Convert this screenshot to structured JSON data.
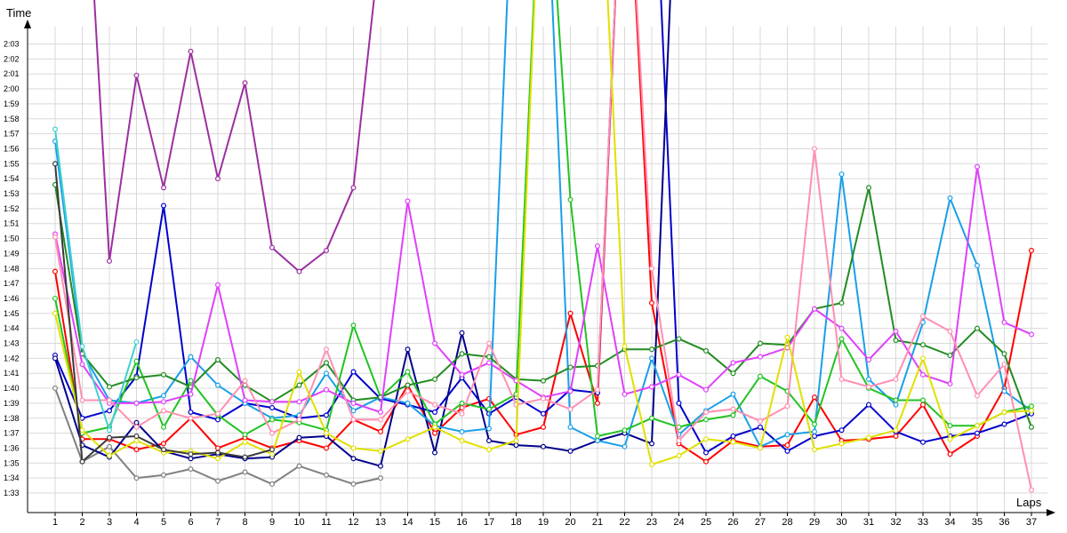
{
  "chart_data": {
    "type": "line",
    "xlabel": "Laps",
    "ylabel": "Time",
    "grid": true,
    "legend": "none",
    "x_ticks": [
      "1",
      "2",
      "3",
      "4",
      "5",
      "6",
      "7",
      "8",
      "9",
      "10",
      "11",
      "12",
      "13",
      "14",
      "15",
      "16",
      "17",
      "18",
      "19",
      "20",
      "21",
      "22",
      "23",
      "24",
      "25",
      "26",
      "27",
      "28",
      "29",
      "30",
      "31",
      "32",
      "33",
      "34",
      "35",
      "36",
      "37"
    ],
    "y_ticks": [
      "1:33",
      "1:34",
      "1:35",
      "1:36",
      "1:37",
      "1:38",
      "1:39",
      "1:40",
      "1:41",
      "1:42",
      "1:43",
      "1:44",
      "1:45",
      "1:46",
      "1:47",
      "1:48",
      "1:49",
      "1:50",
      "1:51",
      "1:52",
      "1:53",
      "1:54",
      "1:55",
      "1:56",
      "1:57",
      "1:58",
      "1:59",
      "2:00",
      "2:01",
      "2:02",
      "2:03"
    ],
    "ylim_seconds": [
      92,
      125
    ],
    "series": [
      {
        "color": "#9b30a0",
        "values": [
          null,
          140,
          108.5,
          120.9,
          113.4,
          122.5,
          114,
          120.4,
          109.4,
          107.8,
          109.2,
          113.4,
          130
        ]
      },
      {
        "color": "#808080",
        "values": [
          100,
          95.1,
          96.1,
          94,
          94.2,
          94.6,
          93.8,
          94.4,
          93.6,
          94.8,
          94.2,
          93.6,
          94
        ]
      },
      {
        "color": "#ff0000",
        "values": [
          107.8,
          96.6,
          96.6,
          95.9,
          96.3,
          98,
          96,
          96.7,
          96,
          96.5,
          96,
          97.9,
          97.1,
          100.2,
          97,
          98.7,
          99.3,
          96.9,
          97.4,
          105,
          99,
          140,
          105.7,
          96.3,
          95.1,
          96.5,
          96.1,
          96.2,
          99.4,
          96.5,
          96.6,
          96.8,
          98.9,
          95.6,
          96.8,
          100,
          109.2
        ]
      },
      {
        "color": "#0000cc",
        "values": [
          102.2,
          98,
          98.5,
          100.8,
          112.2,
          98.4,
          97.9,
          99,
          98.7,
          98,
          98.2,
          101.1,
          99.3,
          98.9,
          98.4,
          100.7,
          98.3,
          99.4,
          98.3,
          99.9,
          99.7,
          140,
          140,
          99,
          95.7,
          96.8,
          97.4,
          95.8,
          96.8,
          97.2,
          98.9,
          97.1,
          96.4,
          96.8,
          97,
          97.6,
          98.3
        ]
      },
      {
        "color": "#00008b",
        "values": [
          102,
          96.2,
          95.4,
          97.7,
          95.8,
          95.3,
          95.6,
          95.3,
          95.4,
          96.7,
          96.8,
          95.3,
          94.8,
          102.6,
          95.7,
          103.7,
          96.5,
          96.2,
          96.1,
          95.8,
          96.5,
          97,
          96.3,
          140
        ]
      },
      {
        "color": "#1a9fe8",
        "values": [
          116.5,
          102.4,
          99.2,
          99,
          99.5,
          102.1,
          100.2,
          99,
          98,
          98.2,
          101,
          98.5,
          99.4,
          99,
          97.5,
          97.1,
          97.3,
          140,
          140,
          97.4,
          96.5,
          96.1,
          102,
          96.9,
          98.5,
          99.6,
          96.1,
          96.9,
          97.1,
          114.3,
          100.6,
          98.9,
          104.4,
          112.7,
          108.2,
          99.8,
          98.5
        ]
      },
      {
        "color": "#22c322",
        "values": [
          106,
          97,
          97.4,
          101.8,
          97.4,
          100.5,
          98.2,
          96.9,
          97.9,
          97.7,
          97.2,
          104.2,
          99.4,
          101.1,
          97.6,
          99,
          98.6,
          99.6,
          140,
          112.6,
          96.8,
          97.2,
          98,
          97.4,
          97.9,
          98.2,
          100.8,
          99.8,
          97.6,
          103.3,
          100,
          99.2,
          99.2,
          97.5,
          97.5,
          98.4,
          98.8
        ]
      },
      {
        "color": "#228b22",
        "values": [
          113.6,
          102.3,
          100.1,
          100.7,
          100.9,
          100.1,
          101.9,
          100.2,
          99.1,
          100.2,
          101.7,
          99.2,
          99.4,
          100.2,
          100.6,
          102.3,
          102.1,
          100.6,
          100.5,
          101.4,
          101.5,
          102.6,
          102.6,
          103.3,
          102.5,
          101,
          103,
          102.9,
          105.3,
          105.7,
          113.4,
          103.2,
          102.9,
          102.2,
          104,
          102.3,
          97.4
        ]
      },
      {
        "color": "#e040fb",
        "values": [
          110.3,
          101.6,
          99,
          99,
          99.1,
          99.6,
          106.9,
          99.2,
          99.1,
          99.1,
          99.9,
          99,
          98.4,
          112.5,
          103,
          100.9,
          101.7,
          100.5,
          99.4,
          99.8,
          109.5,
          99.6,
          100.1,
          100.9,
          99.9,
          101.7,
          102.1,
          102.7,
          105.3,
          104,
          101.9,
          103.8,
          100.9,
          100.3,
          114.8,
          104.4,
          103.6
        ]
      },
      {
        "color": "#ff8fb1",
        "values": [
          110.1,
          99.2,
          99.2,
          97.4,
          98.5,
          98,
          98.3,
          100.5,
          97,
          97.9,
          102.6,
          97.9,
          97.9,
          99.8,
          98.9,
          98.3,
          103,
          98.9,
          99.3,
          98.6,
          99.9,
          140,
          108,
          96.5,
          98.4,
          98.6,
          97.8,
          98.8,
          116,
          100.6,
          100.1,
          100.6,
          104.8,
          103.8,
          99.5,
          101.6,
          93.2
        ]
      },
      {
        "color": "#e0e000",
        "values": [
          105,
          97.2,
          95.5,
          96.5,
          95.7,
          95.8,
          95.3,
          96.4,
          95.6,
          101.1,
          97,
          96,
          95.8,
          96.6,
          97.4,
          96.5,
          95.9,
          96.5,
          140,
          140,
          140,
          102.8,
          94.9,
          95.5,
          96.6,
          96.4,
          96,
          103.4,
          95.9,
          96.3,
          96.7,
          97.2,
          102,
          96.6,
          97.5,
          98.4,
          98.5
        ]
      },
      {
        "color": "#40d0d0",
        "values": [
          117.3,
          102.8,
          97.2,
          103.1
        ]
      },
      {
        "color": "#3b3b3b",
        "values": [
          115,
          95.1,
          96.7,
          96.8,
          95.9,
          95.6,
          95.7,
          95.4,
          95.9
        ]
      }
    ]
  }
}
